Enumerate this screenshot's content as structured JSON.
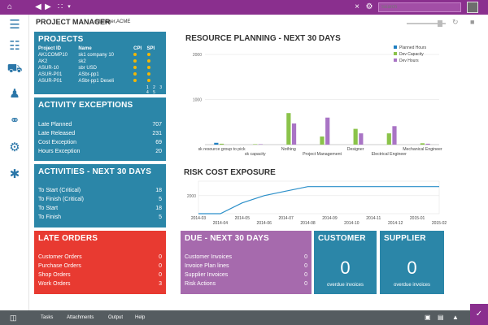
{
  "topbar": {
    "home_icon": "home-icon",
    "search_placeholder": "Search"
  },
  "header": {
    "title": "PROJECT MANAGER",
    "subtitle": "Manager,ACME"
  },
  "projects": {
    "title": "PROJECTS",
    "columns": [
      "Project ID",
      "Name",
      "CPI",
      "SPI"
    ],
    "rows": [
      [
        "AK1COMP10",
        "sk1 company 10"
      ],
      [
        "AK2",
        "sk2"
      ],
      [
        "ASUR-10",
        "sbr USD"
      ],
      [
        "ASUR-P01",
        "ASbr-pp1"
      ],
      [
        "ASUR-P01",
        "ASbr-pp1 Deseli"
      ]
    ],
    "pages": "1 2 3 4 5"
  },
  "activity_exceptions": {
    "title": "ACTIVITY EXCEPTIONS",
    "items": [
      {
        "label": "Late Planned",
        "value": "707"
      },
      {
        "label": "Late Released",
        "value": "231"
      },
      {
        "label": "Cost Exception",
        "value": "69"
      },
      {
        "label": "Hours Exception",
        "value": "20"
      }
    ]
  },
  "activities": {
    "title": "ACTIVITIES - NEXT 30 DAYS",
    "items": [
      {
        "label": "To Start (Critical)",
        "value": "18"
      },
      {
        "label": "To Finish (Critical)",
        "value": "5"
      },
      {
        "label": "To Start",
        "value": "18"
      },
      {
        "label": "To Finish",
        "value": "5"
      }
    ]
  },
  "late_orders": {
    "title": "LATE ORDERS",
    "items": [
      {
        "label": "Customer Orders",
        "value": "0"
      },
      {
        "label": "Purchase Orders",
        "value": "0"
      },
      {
        "label": "Shop Orders",
        "value": "0"
      },
      {
        "label": "Work Orders",
        "value": "3"
      }
    ]
  },
  "due": {
    "title": "DUE - NEXT 30 DAYS",
    "items": [
      {
        "label": "Customer Invoices",
        "value": "0"
      },
      {
        "label": "Invoice Plan lines",
        "value": "0"
      },
      {
        "label": "Supplier Invoices",
        "value": "0"
      },
      {
        "label": "Risk Actions",
        "value": "0"
      }
    ]
  },
  "customer": {
    "title": "CUSTOMER",
    "value": "0",
    "caption": "overdue invoices"
  },
  "supplier": {
    "title": "SUPPLIER",
    "value": "0",
    "caption": "overdue invoices"
  },
  "chart_data": [
    {
      "type": "bar",
      "title": "RESOURCE PLANNING - NEXT 30 DAYS",
      "categories": [
        "sk resource group to pick",
        "sk capacity",
        "Nothing",
        "Project Management",
        "Designer",
        "Electrical Engineer",
        "Mechanical Engineer"
      ],
      "series": [
        {
          "name": "Planned Hours",
          "color": "#1f7fc2",
          "values": [
            40,
            0,
            0,
            0,
            0,
            0,
            0
          ]
        },
        {
          "name": "Dev Capacity",
          "color": "#8bc34a",
          "values": [
            20,
            10,
            700,
            180,
            350,
            250,
            30
          ]
        },
        {
          "name": "Dev Hours",
          "color": "#a974c5",
          "values": [
            0,
            10,
            470,
            600,
            250,
            410,
            20
          ]
        }
      ],
      "y_ticks": [
        "1000",
        "2000"
      ],
      "ylim": [
        0,
        2200
      ]
    },
    {
      "type": "line",
      "title": "RISK COST EXPOSURE",
      "x_labels": [
        "2014-03",
        "2014-04",
        "2014-05",
        "2014-06",
        "2014-07",
        "2014-08",
        "2014-09",
        "2014-10",
        "2014-11",
        "2014-12",
        "2015-01",
        "2015-02"
      ],
      "values": [
        0,
        0,
        1200,
        2000,
        2500,
        3000,
        3000,
        3000,
        3000,
        3000,
        3000,
        3000
      ],
      "y_ticks": [
        "2000"
      ],
      "ylim": [
        0,
        3600
      ],
      "color": "#2b8fc9"
    }
  ],
  "bottombar": {
    "items": [
      "Tasks",
      "Attachments",
      "Output",
      "Help"
    ]
  }
}
